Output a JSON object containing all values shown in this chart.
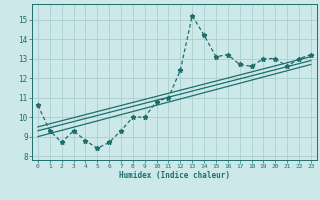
{
  "xlabel": "Humidex (Indice chaleur)",
  "ylabel": "",
  "xlim": [
    -0.5,
    23.5
  ],
  "ylim": [
    7.8,
    15.8
  ],
  "yticks": [
    8,
    9,
    10,
    11,
    12,
    13,
    14,
    15
  ],
  "xticks": [
    0,
    1,
    2,
    3,
    4,
    5,
    6,
    7,
    8,
    9,
    10,
    11,
    12,
    13,
    14,
    15,
    16,
    17,
    18,
    19,
    20,
    21,
    22,
    23
  ],
  "background_color": "#cce8e8",
  "grid_color": "#aad0d0",
  "line_color": "#1e6e6e",
  "series1_x": [
    0,
    1,
    2,
    3,
    4,
    5,
    6,
    7,
    8,
    9,
    10,
    11,
    12,
    13,
    14,
    15,
    16,
    17,
    18,
    19,
    20,
    21,
    22,
    23
  ],
  "series1_y": [
    10.6,
    9.3,
    8.7,
    9.3,
    8.8,
    8.4,
    8.7,
    9.3,
    10.0,
    10.0,
    10.8,
    11.0,
    12.4,
    15.2,
    14.2,
    13.1,
    13.2,
    12.7,
    12.6,
    13.0,
    13.0,
    12.6,
    13.0,
    13.2
  ],
  "reg_lines": [
    {
      "x0": 0,
      "y0": 9.0,
      "x1": 23,
      "y1": 12.7
    },
    {
      "x0": 0,
      "y0": 9.3,
      "x1": 23,
      "y1": 12.9
    },
    {
      "x0": 0,
      "y0": 9.5,
      "x1": 23,
      "y1": 13.1
    }
  ]
}
